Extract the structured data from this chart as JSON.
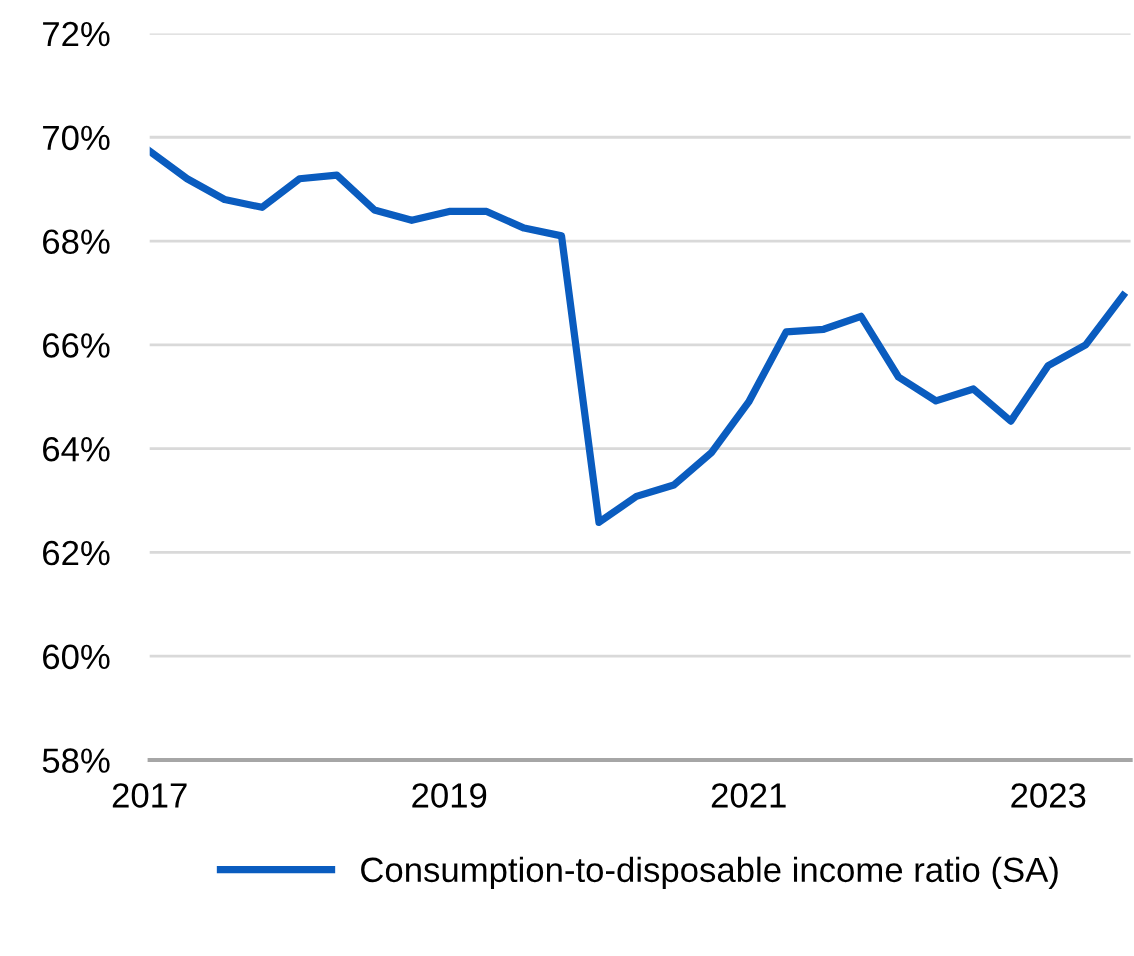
{
  "chart_data": {
    "type": "line",
    "x": [
      2017,
      2017.25,
      2017.5,
      2017.75,
      2018,
      2018.25,
      2018.5,
      2018.75,
      2019,
      2019.25,
      2019.5,
      2019.75,
      2020,
      2020.25,
      2020.5,
      2020.75,
      2021,
      2021.25,
      2021.5,
      2021.75,
      2022,
      2022.25,
      2022.5,
      2022.75,
      2023,
      2023.25,
      2023.5
    ],
    "series": [
      {
        "name": "Consumption-to-disposable income ratio (SA)",
        "color": "#0a5cbf",
        "values": [
          69.73,
          69.2,
          68.8,
          68.65,
          69.2,
          69.27,
          68.6,
          68.4,
          68.57,
          68.57,
          68.25,
          68.1,
          62.58,
          63.08,
          63.3,
          63.92,
          64.9,
          66.25,
          66.3,
          66.55,
          65.38,
          64.92,
          65.15,
          64.53,
          65.6,
          66.0,
          66.95
        ]
      }
    ],
    "xlim": [
      2017,
      2023.55
    ],
    "ylim": [
      58,
      72
    ],
    "xticks": [
      2017,
      2019,
      2021,
      2023
    ],
    "yticks": [
      {
        "value": 58,
        "label": "58%"
      },
      {
        "value": 60,
        "label": "60%"
      },
      {
        "value": 62,
        "label": "62%"
      },
      {
        "value": 64,
        "label": "64%"
      },
      {
        "value": 66,
        "label": "66%"
      },
      {
        "value": 68,
        "label": "68%"
      },
      {
        "value": 70,
        "label": "70%"
      },
      {
        "value": 72,
        "label": "72%"
      }
    ],
    "grid": "y",
    "legend": "bottom",
    "marker": "none",
    "line_style": "solid"
  }
}
